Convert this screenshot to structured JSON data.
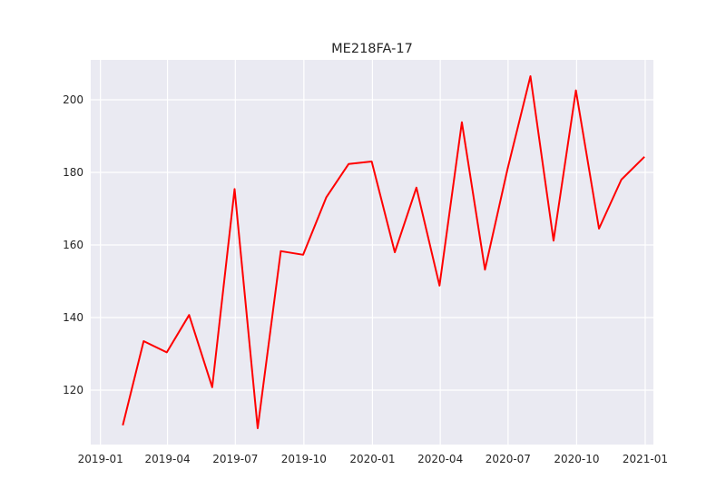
{
  "chart_data": {
    "type": "line",
    "title": "ME218FA-17",
    "xlabel": "",
    "ylabel": "",
    "grid": true,
    "colors": {
      "background": "#eaeaf2",
      "grid": "#ffffff",
      "line": "#ff0000"
    },
    "x_range": [
      "2018-12-19",
      "2021-01-12"
    ],
    "y_range": [
      105,
      211
    ],
    "x_ticks": [
      {
        "date": "2019-01-01",
        "label": "2019-01"
      },
      {
        "date": "2019-04-01",
        "label": "2019-04"
      },
      {
        "date": "2019-07-01",
        "label": "2019-07"
      },
      {
        "date": "2019-10-01",
        "label": "2019-10"
      },
      {
        "date": "2020-01-01",
        "label": "2020-01"
      },
      {
        "date": "2020-04-01",
        "label": "2020-04"
      },
      {
        "date": "2020-07-01",
        "label": "2020-07"
      },
      {
        "date": "2020-10-01",
        "label": "2020-10"
      },
      {
        "date": "2021-01-01",
        "label": "2021-01"
      }
    ],
    "y_ticks": [
      120,
      140,
      160,
      180,
      200
    ],
    "series": [
      {
        "x": [
          "2019-01-31",
          "2019-02-28",
          "2019-03-31",
          "2019-04-30",
          "2019-05-31",
          "2019-06-30",
          "2019-07-31",
          "2019-08-31",
          "2019-09-30",
          "2019-10-31",
          "2019-11-30",
          "2019-12-31",
          "2020-01-31",
          "2020-02-29",
          "2020-03-31",
          "2020-04-30",
          "2020-05-31",
          "2020-06-30",
          "2020-07-31",
          "2020-08-31",
          "2020-09-30",
          "2020-10-31",
          "2020-11-30",
          "2020-12-31"
        ],
        "y": [
          110.3,
          133.5,
          130.4,
          140.7,
          120.8,
          175.4,
          109.5,
          158.3,
          157.3,
          173.1,
          182.3,
          183.0,
          158.0,
          175.8,
          148.8,
          193.8,
          153.2,
          180.7,
          206.5,
          161.2,
          202.6,
          164.5,
          178.0,
          184.3
        ]
      }
    ]
  }
}
